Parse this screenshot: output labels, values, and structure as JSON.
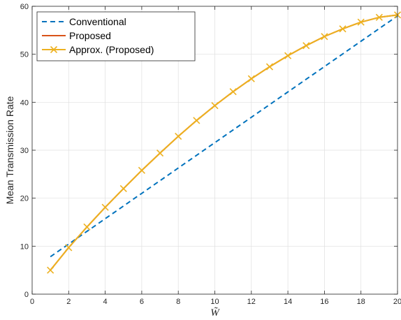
{
  "chart_data": {
    "type": "line",
    "title": "",
    "xlabel": "W̃",
    "ylabel": "Mean Transmission Rate",
    "xlim": [
      0,
      20
    ],
    "ylim": [
      0,
      60
    ],
    "xticks": [
      0,
      2,
      4,
      6,
      8,
      10,
      12,
      14,
      16,
      18,
      20
    ],
    "yticks": [
      0,
      10,
      20,
      30,
      40,
      50,
      60
    ],
    "grid": true,
    "legend_position": "top-left",
    "series": [
      {
        "name": "Conventional",
        "color": "#0072BD",
        "style": "dashed",
        "marker": "none",
        "x": [
          1,
          20
        ],
        "y": [
          7.8,
          58.0
        ]
      },
      {
        "name": "Proposed",
        "color": "#D95319",
        "style": "solid",
        "marker": "none",
        "x": [
          1,
          2,
          3,
          4,
          5,
          6,
          7,
          8,
          9,
          10,
          11,
          12,
          13,
          14,
          15,
          16,
          17,
          18,
          19,
          20
        ],
        "y": [
          5.0,
          9.7,
          14.0,
          18.1,
          22.0,
          25.8,
          29.4,
          32.9,
          36.2,
          39.3,
          42.2,
          44.9,
          47.4,
          49.7,
          51.8,
          53.7,
          55.3,
          56.7,
          57.7,
          58.2
        ]
      },
      {
        "name": "Approx. (Proposed)",
        "color": "#EDB120",
        "style": "solid",
        "marker": "x",
        "x": [
          1,
          2,
          3,
          4,
          5,
          6,
          7,
          8,
          9,
          10,
          11,
          12,
          13,
          14,
          15,
          16,
          17,
          18,
          19,
          20
        ],
        "y": [
          5.0,
          9.7,
          14.0,
          18.1,
          22.0,
          25.8,
          29.4,
          32.9,
          36.2,
          39.3,
          42.2,
          44.9,
          47.4,
          49.7,
          51.8,
          53.7,
          55.3,
          56.7,
          57.7,
          58.2
        ]
      }
    ]
  }
}
